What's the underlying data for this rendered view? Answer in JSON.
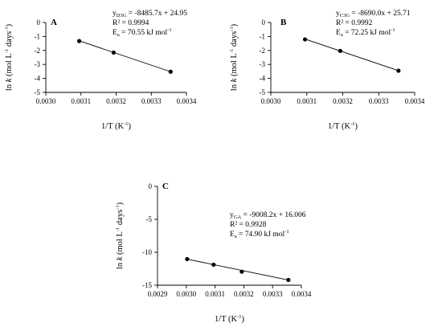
{
  "chart_data": [
    {
      "type": "scatter",
      "panel_label": "A",
      "xlabel": {
        "main": "1/T (K",
        "sup": "-1",
        "tail": ")"
      },
      "ylabel": {
        "pre": "ln ",
        "italic": "k",
        "mid": " (mol L",
        "sup1": "-1",
        "mid2": " days",
        "sup2": "-1",
        "post": ")"
      },
      "xlim": [
        0.003,
        0.0034
      ],
      "ylim": [
        -5,
        0
      ],
      "xticks": [
        "0.0030",
        "0.0031",
        "0.0032",
        "0.0033",
        "0.0034"
      ],
      "yticks": [
        "0",
        "-1",
        "-2",
        "-3",
        "-4",
        "-5"
      ],
      "x": [
        0.003095,
        0.003193,
        0.003355
      ],
      "y": [
        -1.33,
        -2.15,
        -3.52
      ],
      "fit": {
        "slope": -8485.7,
        "intercept": 24.95
      },
      "annotation": {
        "eq_y": "y",
        "eq_sub": "D3G",
        "eq_rest": " = -8485.7x + 24.95",
        "r2": "R² = 0.9994",
        "ea_pre": "E",
        "ea_sub": "a",
        "ea_rest": " = 70.55 kJ mol",
        "ea_sup": "-1"
      }
    },
    {
      "type": "scatter",
      "panel_label": "B",
      "xlabel": {
        "main": "1/T (K",
        "sup": "-1",
        "tail": ")"
      },
      "ylabel": {
        "pre": "ln ",
        "italic": "k",
        "mid": " (mol L",
        "sup1": "-1",
        "mid2": " days",
        "sup2": "-1",
        "post": ")"
      },
      "xlim": [
        0.003,
        0.0034
      ],
      "ylim": [
        -5,
        0
      ],
      "xticks": [
        "0.0030",
        "0.0031",
        "0.0032",
        "0.0033",
        "0.0034"
      ],
      "yticks": [
        "0",
        "-1",
        "-2",
        "-3",
        "-4",
        "-5"
      ],
      "x": [
        0.003095,
        0.003193,
        0.003355
      ],
      "y": [
        -1.21,
        -2.03,
        -3.45
      ],
      "fit": {
        "slope": -8690.0,
        "intercept": 25.71
      },
      "annotation": {
        "eq_y": "y",
        "eq_sub": "C3G",
        "eq_rest": " = -8690.0x + 25.71",
        "r2": "R² = 0.9992",
        "ea_pre": "E",
        "ea_sub": "a",
        "ea_rest": " = 72.25 kJ mol",
        "ea_sup": "-1"
      }
    },
    {
      "type": "scatter",
      "panel_label": "C",
      "xlabel": {
        "main": "1/T (K",
        "sup": "-1",
        "tail": ")"
      },
      "ylabel": {
        "pre": "ln ",
        "italic": "k",
        "mid": " (mol L",
        "sup1": "-1",
        "mid2": " days",
        "sup2": "-1",
        "post": ")"
      },
      "xlim": [
        0.0029,
        0.0034
      ],
      "ylim": [
        -15,
        0
      ],
      "xticks": [
        "0.0029",
        "0.0030",
        "0.0031",
        "0.0032",
        "0.0033",
        "0.0034"
      ],
      "yticks": [
        "0",
        "-5",
        "-10",
        "-15"
      ],
      "x": [
        0.003003,
        0.003095,
        0.003193,
        0.003355
      ],
      "y": [
        -11.03,
        -11.88,
        -12.95,
        -14.2
      ],
      "fit": {
        "slope": -9008.2,
        "intercept": 16.006
      },
      "annotation": {
        "eq_y": "y",
        "eq_sub": "GA",
        "eq_rest": " = -9008.2x + 16.006",
        "r2": "R² = 0.9928",
        "ea_pre": "E",
        "ea_sub": "a",
        "ea_rest": " = 74.90 kJ mol",
        "ea_sup": "-1"
      }
    }
  ]
}
